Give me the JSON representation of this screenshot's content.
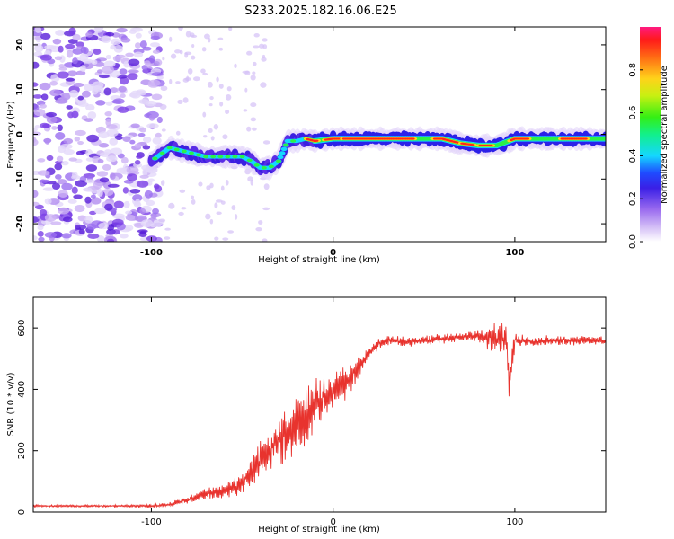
{
  "title": "S233.2025.182.16.06.E25",
  "chart_data": [
    {
      "type": "heatmap",
      "xlabel": "Height of straight line (km)",
      "ylabel": "Frequency (Hz)",
      "xlim": [
        -165,
        150
      ],
      "ylim": [
        -24,
        24
      ],
      "xticks": [
        -100,
        0,
        100
      ],
      "yticks": [
        -20,
        -10,
        0,
        10,
        20
      ],
      "colorbar": {
        "label": "Normalized spectral amplitude",
        "range": [
          0,
          1
        ],
        "ticks": [
          "0.0",
          "0.2",
          "0.4",
          "0.6",
          "0.8"
        ]
      },
      "ridge": {
        "x": [
          -100,
          -90,
          -80,
          -70,
          -60,
          -50,
          -45,
          -40,
          -35,
          -30,
          -25,
          -20,
          -15,
          -10,
          0,
          20,
          40,
          60,
          70,
          80,
          90,
          100,
          110,
          120,
          130,
          140,
          150
        ],
        "y": [
          -6,
          -3,
          -4,
          -5,
          -5,
          -5,
          -6,
          -7.5,
          -7.5,
          -6,
          -1.5,
          -1.5,
          -1,
          -1.5,
          -1,
          -1,
          -1,
          -1,
          -2,
          -2.5,
          -2.5,
          -1,
          -1,
          -1,
          -1,
          -1,
          -1
        ]
      }
    },
    {
      "type": "line",
      "xlabel": "Height of straight line (km)",
      "ylabel": "SNR (10 * v/v)",
      "xlim": [
        -165,
        150
      ],
      "ylim": [
        0,
        700
      ],
      "xticks": [
        -100,
        0,
        100
      ],
      "yticks": [
        0,
        200,
        400,
        600
      ],
      "series": [
        {
          "color": "#e8332e",
          "x": [
            -165,
            -150,
            -140,
            -130,
            -120,
            -110,
            -100,
            -90,
            -80,
            -70,
            -60,
            -50,
            -45,
            -40,
            -35,
            -30,
            -25,
            -20,
            -15,
            -10,
            -5,
            0,
            5,
            10,
            15,
            20,
            25,
            30,
            40,
            50,
            60,
            70,
            80,
            85,
            90,
            95,
            97,
            100,
            110,
            120,
            130,
            140,
            150
          ],
          "values": [
            20,
            20,
            20,
            20,
            20,
            20,
            20,
            25,
            40,
            60,
            70,
            90,
            130,
            170,
            200,
            230,
            260,
            290,
            320,
            350,
            370,
            390,
            410,
            440,
            480,
            520,
            550,
            560,
            555,
            560,
            565,
            570,
            575,
            570,
            565,
            560,
            420,
            560,
            555,
            560,
            560,
            560,
            560
          ],
          "noise": [
            6,
            6,
            6,
            6,
            6,
            6,
            8,
            12,
            20,
            30,
            40,
            60,
            90,
            110,
            120,
            130,
            140,
            150,
            150,
            140,
            120,
            100,
            90,
            70,
            50,
            35,
            30,
            25,
            25,
            25,
            25,
            25,
            28,
            60,
            90,
            120,
            120,
            40,
            25,
            25,
            25,
            25,
            25
          ]
        }
      ]
    }
  ],
  "colors": {
    "line": "#e8332e",
    "frame": "#000000",
    "ridge_core": "#e8332e"
  }
}
